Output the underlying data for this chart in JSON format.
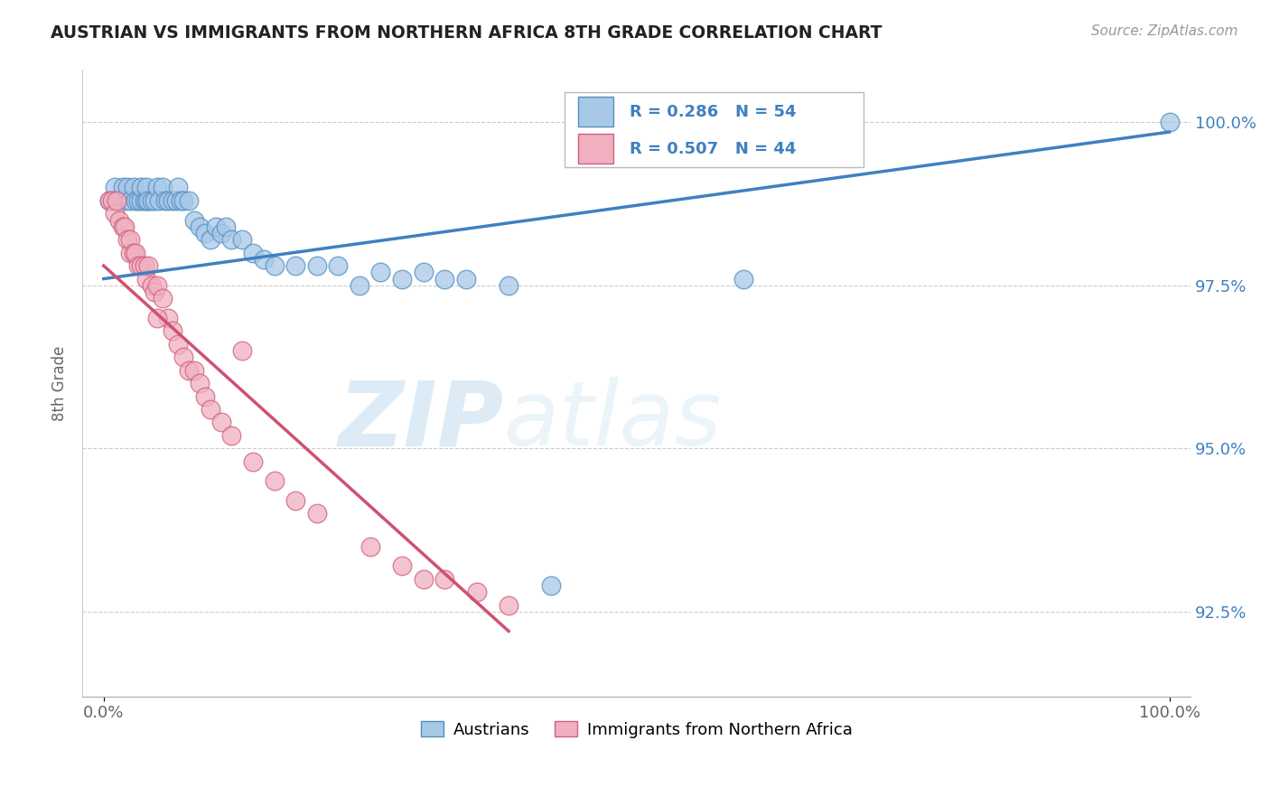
{
  "title": "AUSTRIAN VS IMMIGRANTS FROM NORTHERN AFRICA 8TH GRADE CORRELATION CHART",
  "source": "Source: ZipAtlas.com",
  "ylabel": "8th Grade",
  "xlim": [
    -0.02,
    1.02
  ],
  "ylim": [
    0.912,
    1.008
  ],
  "x_tick_labels": [
    "0.0%",
    "100.0%"
  ],
  "x_tick_vals": [
    0.0,
    1.0
  ],
  "y_tick_labels": [
    "92.5%",
    "95.0%",
    "97.5%",
    "100.0%"
  ],
  "y_tick_vals": [
    0.925,
    0.95,
    0.975,
    1.0
  ],
  "legend_r_blue": "R = 0.286",
  "legend_n_blue": "N = 54",
  "legend_r_pink": "R = 0.507",
  "legend_n_pink": "N = 44",
  "color_blue_fill": "#a8c8e8",
  "color_blue_edge": "#5090c0",
  "color_pink_fill": "#f0b0c0",
  "color_pink_edge": "#d06080",
  "color_blue_line": "#4080c0",
  "color_pink_line": "#d05070",
  "watermark_zip": "ZIP",
  "watermark_atlas": "atlas",
  "blue_x": [
    0.005,
    0.01,
    0.015,
    0.018,
    0.02,
    0.022,
    0.025,
    0.028,
    0.03,
    0.032,
    0.035,
    0.035,
    0.038,
    0.04,
    0.04,
    0.042,
    0.045,
    0.048,
    0.05,
    0.052,
    0.055,
    0.058,
    0.06,
    0.065,
    0.068,
    0.07,
    0.072,
    0.075,
    0.08,
    0.085,
    0.09,
    0.095,
    0.1,
    0.105,
    0.11,
    0.115,
    0.12,
    0.13,
    0.14,
    0.15,
    0.16,
    0.18,
    0.2,
    0.22,
    0.24,
    0.26,
    0.28,
    0.3,
    0.32,
    0.34,
    0.38,
    0.42,
    0.6,
    1.0
  ],
  "blue_y": [
    0.988,
    0.99,
    0.988,
    0.99,
    0.988,
    0.99,
    0.988,
    0.99,
    0.988,
    0.988,
    0.988,
    0.99,
    0.988,
    0.988,
    0.99,
    0.988,
    0.988,
    0.988,
    0.99,
    0.988,
    0.99,
    0.988,
    0.988,
    0.988,
    0.988,
    0.99,
    0.988,
    0.988,
    0.988,
    0.985,
    0.984,
    0.983,
    0.982,
    0.984,
    0.983,
    0.984,
    0.982,
    0.982,
    0.98,
    0.979,
    0.978,
    0.978,
    0.978,
    0.978,
    0.975,
    0.977,
    0.976,
    0.977,
    0.976,
    0.976,
    0.975,
    0.929,
    0.976,
    1.0
  ],
  "pink_x": [
    0.005,
    0.008,
    0.01,
    0.012,
    0.015,
    0.018,
    0.02,
    0.022,
    0.025,
    0.025,
    0.028,
    0.03,
    0.032,
    0.035,
    0.038,
    0.04,
    0.042,
    0.045,
    0.048,
    0.05,
    0.055,
    0.06,
    0.065,
    0.07,
    0.075,
    0.08,
    0.085,
    0.09,
    0.095,
    0.1,
    0.11,
    0.12,
    0.14,
    0.16,
    0.18,
    0.2,
    0.25,
    0.28,
    0.3,
    0.32,
    0.35,
    0.38,
    0.05,
    0.13
  ],
  "pink_y": [
    0.988,
    0.988,
    0.986,
    0.988,
    0.985,
    0.984,
    0.984,
    0.982,
    0.98,
    0.982,
    0.98,
    0.98,
    0.978,
    0.978,
    0.978,
    0.976,
    0.978,
    0.975,
    0.974,
    0.975,
    0.973,
    0.97,
    0.968,
    0.966,
    0.964,
    0.962,
    0.962,
    0.96,
    0.958,
    0.956,
    0.954,
    0.952,
    0.948,
    0.945,
    0.942,
    0.94,
    0.935,
    0.932,
    0.93,
    0.93,
    0.928,
    0.926,
    0.97,
    0.965
  ],
  "blue_line_x": [
    0.0,
    1.0
  ],
  "blue_line_y": [
    0.976,
    0.9985
  ],
  "pink_line_x": [
    0.0,
    0.38
  ],
  "pink_line_y": [
    0.978,
    0.922
  ]
}
